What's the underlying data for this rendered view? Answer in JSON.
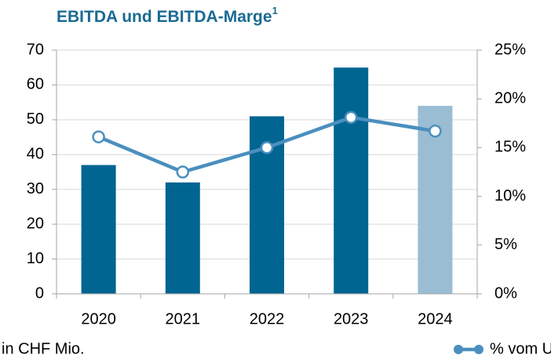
{
  "chart_data": {
    "type": "bar",
    "title": "EBITDA und EBITDA-Marge",
    "title_superscript": "1",
    "y_label": "in CHF Mio.",
    "categories": [
      "2020",
      "2021",
      "2022",
      "2023",
      "2024"
    ],
    "values": [
      37,
      32,
      51,
      65,
      54
    ],
    "colors": [
      "#006591",
      "#006591",
      "#006591",
      "#006591",
      "#9bbdd3"
    ],
    "series": [
      {
        "name": "% vom Umsatz",
        "color": "#4a8fbe",
        "axis": "y2",
        "values": [
          16.1,
          12.5,
          15.0,
          18.1,
          16.7
        ]
      }
    ],
    "ylim": [
      0,
      70
    ],
    "yticks": [
      0,
      10,
      20,
      30,
      40,
      50,
      60,
      70
    ],
    "y2lim": [
      0,
      25
    ],
    "y2ticks": [
      {
        "value": 0,
        "label": "0%"
      },
      {
        "value": 5,
        "label": "5%"
      },
      {
        "value": 10,
        "label": "10%"
      },
      {
        "value": 15,
        "label": "15%"
      },
      {
        "value": 20,
        "label": "20%"
      },
      {
        "value": 25,
        "label": "25%"
      }
    ],
    "grid": true
  }
}
